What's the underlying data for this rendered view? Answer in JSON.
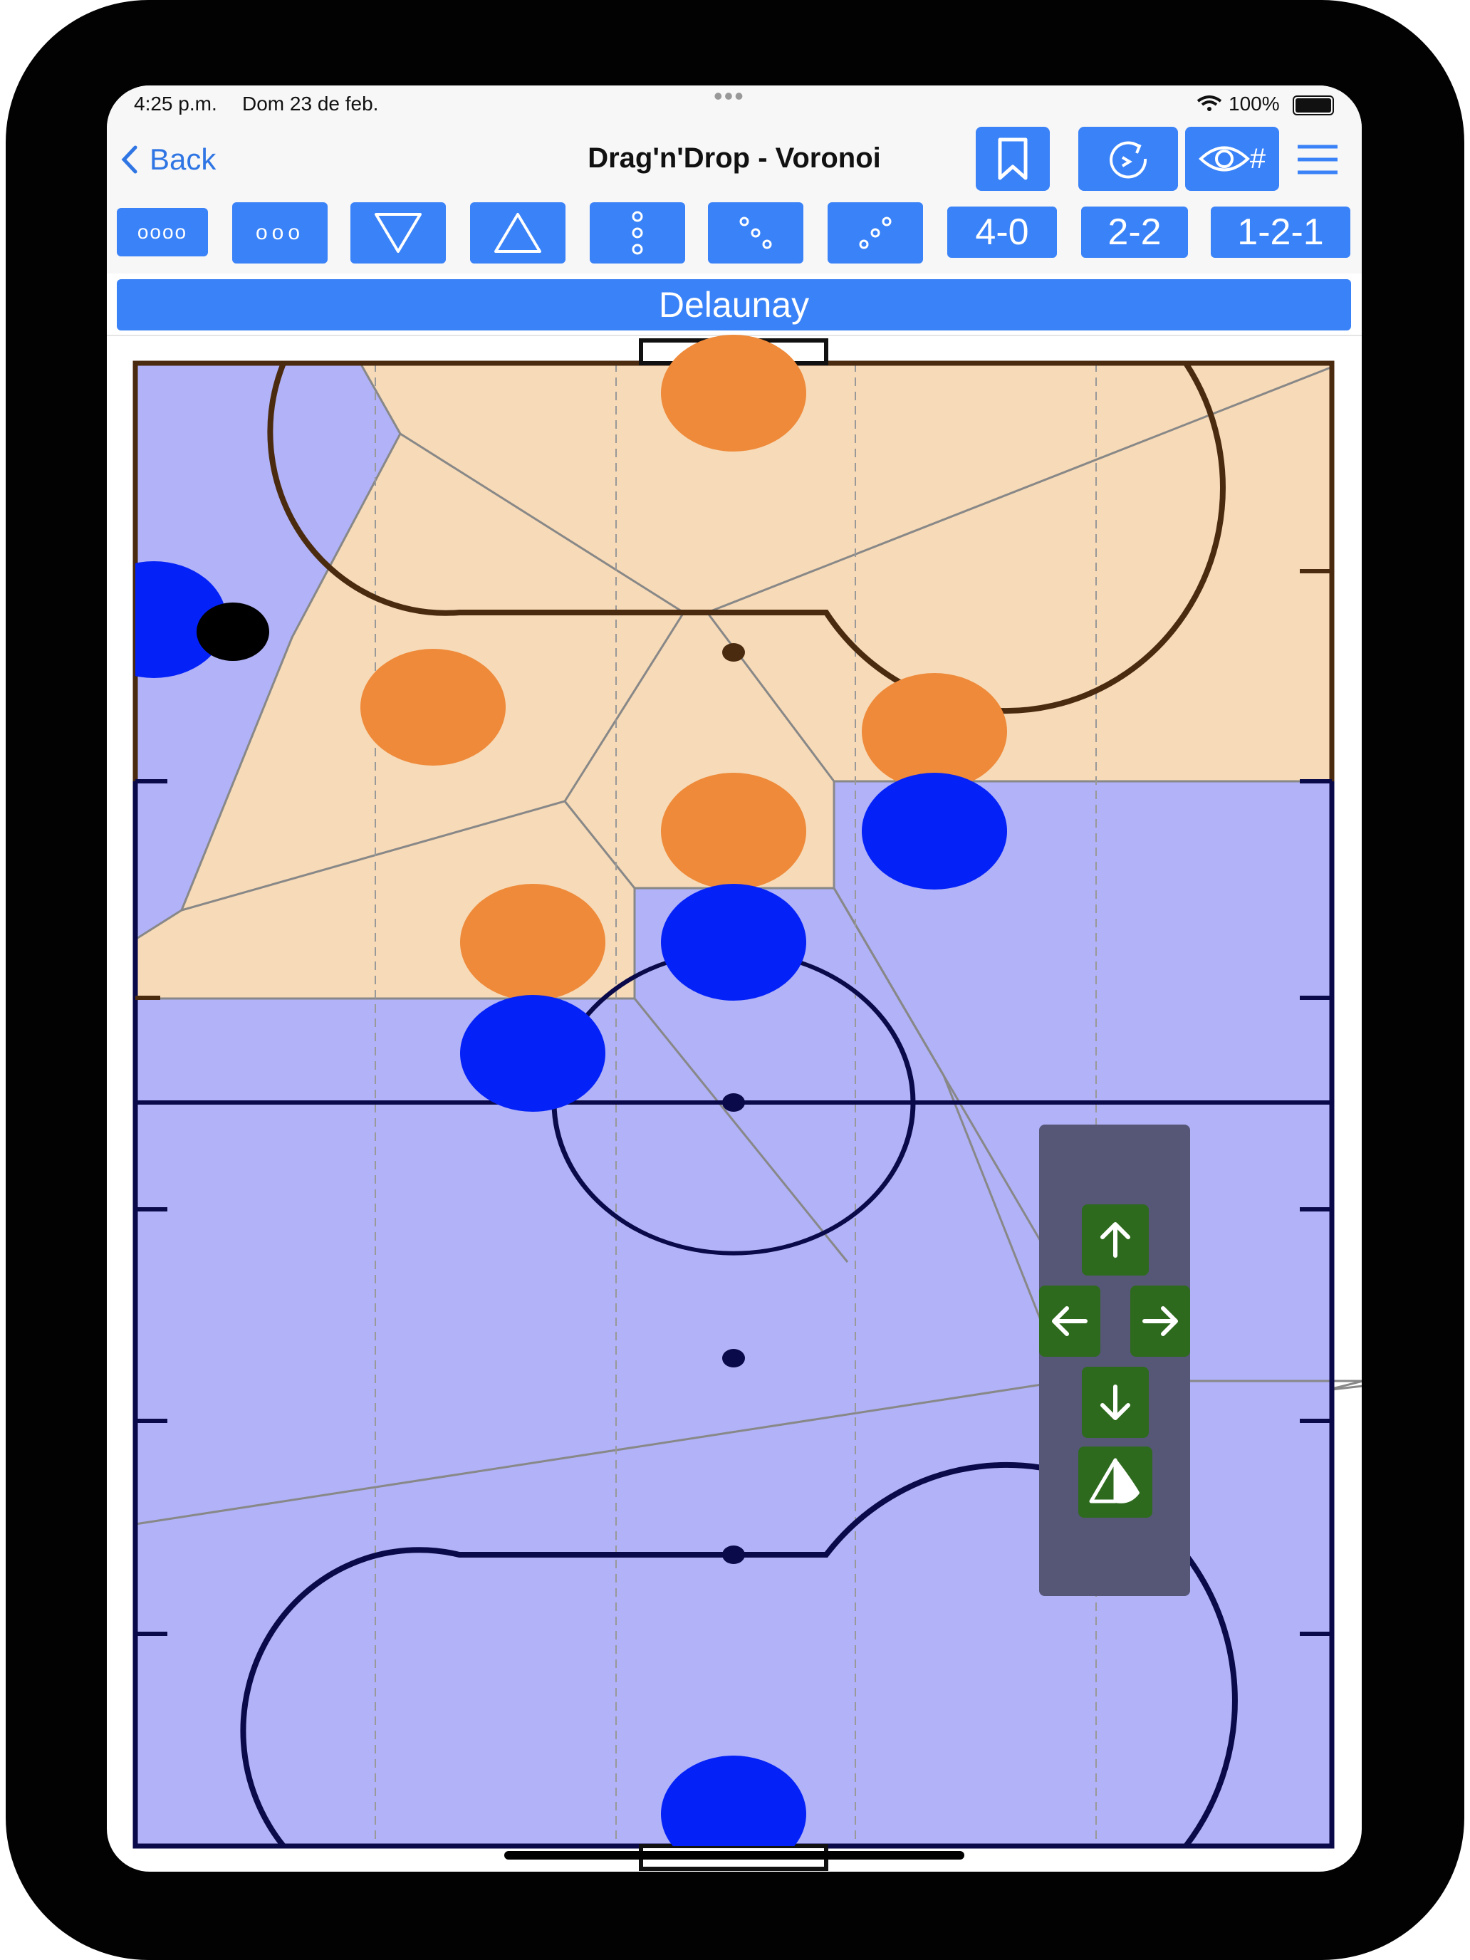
{
  "status": {
    "time": "4:25 p.m.",
    "date": "Dom 23 de feb.",
    "battery": "100%",
    "dots": "•••"
  },
  "nav": {
    "back_label": "Back",
    "title": "Drag'n'Drop - Voronoi",
    "grid_label": "#"
  },
  "formations": {
    "dots4": "oooo",
    "dots3": "ooo",
    "f40": "4-0",
    "f22": "2-2",
    "f121": "1-2-1"
  },
  "mode_label": "Delaunay",
  "colors": {
    "accent": "#3a82f7",
    "team_orange": "#ee8a3a",
    "team_blue": "#0422f7",
    "region_orange": "#f7dab7",
    "region_blue": "#b1b2f7",
    "dpad_bg": "#565676",
    "dpad_key": "#2e6a1e"
  },
  "icons": [
    "chevron-left-icon",
    "bookmark-icon",
    "refresh-icon",
    "eye-icon",
    "menu-icon",
    "triangle-down-icon",
    "triangle-up-icon",
    "vertical-dots-icon",
    "diagonal-dots-icon",
    "arrow-up-icon",
    "arrow-left-icon",
    "arrow-right-icon",
    "arrow-down-icon",
    "flip-icon"
  ]
}
